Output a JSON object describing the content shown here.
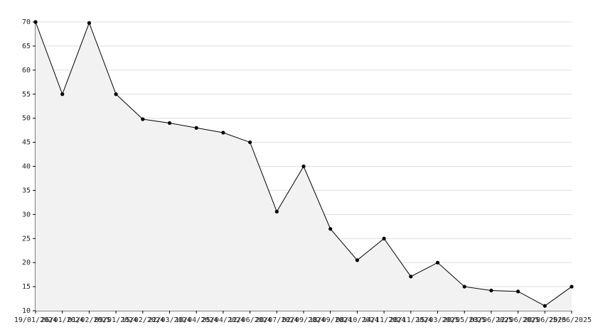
{
  "chart_data": {
    "type": "line",
    "categories": [
      "19/01/2024",
      "26/01/2024",
      "01/02/2025",
      "09/01/2024",
      "15/02/2024",
      "22/03/2024",
      "10/04/2024",
      "25/04/2024",
      "12/06/2024",
      "20/07/2024",
      "02/09/2024",
      "18/09/2024",
      "08/10/2024",
      "14/11/2024",
      "28/11/2024",
      "15/03/2025",
      "20/05/2025",
      "03/06/2025",
      "12/06/2025",
      "20/06/2025",
      "25/06/2025"
    ],
    "values": [
      70,
      55,
      69.8,
      55,
      49.8,
      49,
      48,
      47,
      45,
      30.6,
      40,
      27,
      20.5,
      25,
      17.1,
      20,
      15,
      14.2,
      14,
      11,
      15
    ],
    "color": "#000000",
    "fill": "#f2f2f2",
    "ylim": [
      10,
      70
    ],
    "yticks": [
      10,
      15,
      20,
      25,
      30,
      35,
      40,
      45,
      50,
      55,
      60,
      65,
      70
    ],
    "grid": true
  }
}
